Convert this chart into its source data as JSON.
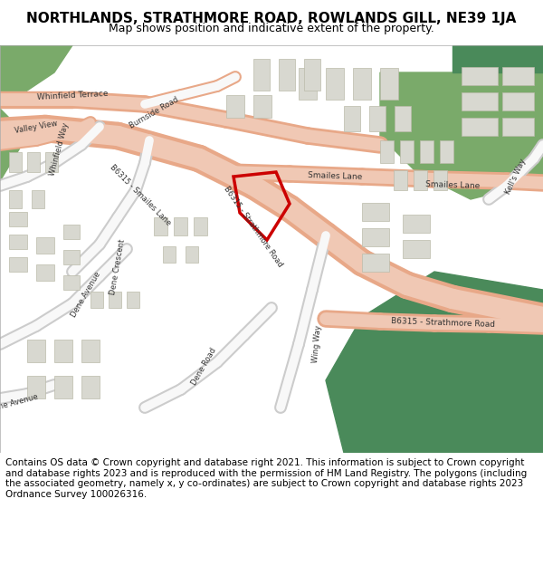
{
  "title_line1": "NORTHLANDS, STRATHMORE ROAD, ROWLANDS GILL, NE39 1JA",
  "title_line2": "Map shows position and indicative extent of the property.",
  "copyright_text": "Contains OS data © Crown copyright and database right 2021. This information is subject to Crown copyright and database rights 2023 and is reproduced with the permission of HM Land Registry. The polygons (including the associated geometry, namely x, y co-ordinates) are subject to Crown copyright and database rights 2023 Ordnance Survey 100026316.",
  "bg_color": "#ffffff",
  "map_bg": "#f5f5f0",
  "road_salmon": "#f0c8b4",
  "road_outline": "#e8a888",
  "green_area": "#7aaa6a",
  "green_dark": "#4a8a5a",
  "building_fill": "#d8d8d0",
  "building_outline": "#bbbbaa",
  "plot_color": "#cc0000",
  "road_label_color": "#333333",
  "title_fontsize": 11,
  "subtitle_fontsize": 9,
  "copyright_fontsize": 7.5
}
